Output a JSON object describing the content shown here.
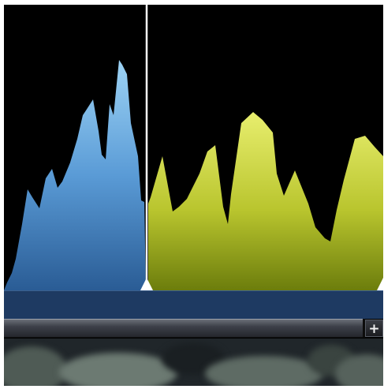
{
  "scrollbar": {
    "add_label": "+"
  },
  "histogram": {
    "left_color_top": "#9dd3f5",
    "left_color_bottom": "#2a5c95",
    "right_color_top": "#e8ee6e",
    "right_color_bottom": "#6c7d0c",
    "divider_color": "#ffffff",
    "band_color": "#1e3a62"
  },
  "icons": {
    "left_marker": "triangle-up-icon",
    "right_marker": "triangle-up-icon",
    "add": "plus-icon"
  }
}
